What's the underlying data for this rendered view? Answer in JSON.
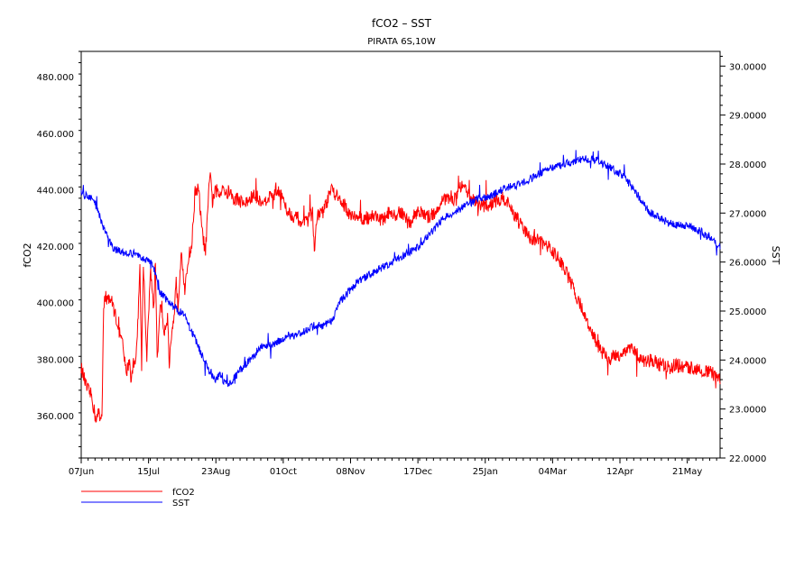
{
  "chart_data": {
    "type": "line",
    "title": "fCO2  –  SST",
    "subtitle": "PIRATA 6S,10W",
    "ylabel_left": "fCO2",
    "ylabel_right": "SST",
    "x_ticks": [
      "07Jun",
      "15Jul",
      "23Aug",
      "01Oct",
      "08Nov",
      "17Dec",
      "25Jan",
      "04Mar",
      "12Apr",
      "21May"
    ],
    "x_range_days": [
      0,
      370
    ],
    "x_tick_step_days": 39,
    "y_left_range": [
      345,
      489
    ],
    "y_left_ticks": [
      "360.000",
      "380.000",
      "400.000",
      "420.000",
      "440.000",
      "460.000",
      "480.000"
    ],
    "y_right_range": [
      22.0,
      30.3
    ],
    "y_right_ticks": [
      "22.0000",
      "23.0000",
      "24.0000",
      "25.0000",
      "26.0000",
      "27.0000",
      "28.0000",
      "29.0000",
      "30.0000"
    ],
    "legend_placement": "bottom-left",
    "grid": false,
    "series": [
      {
        "name": "fCO2",
        "color": "#ff0000",
        "axis": "left",
        "x": [
          0,
          3,
          6,
          8,
          9,
          10,
          11,
          12,
          13,
          14,
          15,
          16,
          18,
          20,
          22,
          24,
          26,
          28,
          29,
          30,
          32,
          34,
          35,
          36,
          38,
          40,
          42,
          43,
          44,
          46,
          48,
          50,
          51,
          52,
          54,
          55,
          56,
          58,
          60,
          62,
          64,
          66,
          68,
          70,
          72,
          74,
          75,
          76,
          78,
          80,
          82,
          84,
          86,
          88,
          90,
          95,
          100,
          105,
          110,
          115,
          120,
          125,
          130,
          134,
          135,
          136,
          140,
          145,
          150,
          155,
          160,
          165,
          170,
          175,
          178,
          180,
          185,
          190,
          195,
          200,
          205,
          210,
          215,
          220,
          225,
          230,
          235,
          240,
          245,
          250,
          255,
          260,
          265,
          270,
          275,
          280,
          285,
          290,
          295,
          300,
          305,
          310,
          315,
          320,
          325,
          330,
          335,
          340,
          345,
          350,
          355,
          360,
          365,
          370
        ],
        "y": [
          377,
          370,
          367,
          360,
          359,
          361,
          359,
          360,
          400,
          402,
          401,
          402,
          400,
          395,
          390,
          385,
          375,
          380,
          372,
          378,
          382,
          412,
          378,
          415,
          380,
          412,
          398,
          415,
          380,
          400,
          390,
          395,
          378,
          385,
          395,
          410,
          398,
          420,
          403,
          416,
          420,
          440,
          440,
          425,
          418,
          440,
          447,
          435,
          440,
          438,
          442,
          438,
          440,
          436,
          437,
          435,
          438,
          436,
          438,
          440,
          432,
          430,
          428,
          432,
          418,
          430,
          432,
          440,
          436,
          432,
          430,
          430,
          431,
          429,
          432,
          430,
          432,
          428,
          433,
          430,
          432,
          437,
          436,
          441,
          438,
          435,
          434,
          436,
          437,
          432,
          427,
          423,
          422,
          420,
          417,
          412,
          405,
          398,
          390,
          384,
          380,
          381,
          383,
          384,
          379,
          380,
          378,
          377,
          378,
          377,
          377,
          376,
          375,
          373
        ],
        "noise": 2.5
      },
      {
        "name": "SST",
        "color": "#0000ff",
        "axis": "right",
        "x": [
          0,
          3,
          6,
          8,
          10,
          12,
          14,
          16,
          18,
          20,
          25,
          30,
          35,
          40,
          43,
          45,
          48,
          50,
          55,
          60,
          65,
          70,
          75,
          78,
          80,
          82,
          85,
          88,
          90,
          95,
          100,
          105,
          110,
          115,
          120,
          125,
          130,
          135,
          140,
          145,
          150,
          155,
          160,
          165,
          170,
          175,
          180,
          185,
          190,
          195,
          200,
          205,
          210,
          215,
          220,
          225,
          230,
          235,
          240,
          245,
          250,
          255,
          260,
          265,
          270,
          275,
          280,
          285,
          290,
          295,
          300,
          305,
          310,
          315,
          320,
          325,
          330,
          335,
          340,
          345,
          350,
          355,
          360,
          365,
          370
        ],
        "y": [
          27.4,
          27.35,
          27.3,
          27.2,
          27.0,
          26.8,
          26.6,
          26.45,
          26.3,
          26.25,
          26.2,
          26.15,
          26.1,
          26.0,
          25.8,
          25.4,
          25.3,
          25.2,
          25.05,
          24.9,
          24.5,
          24.1,
          23.7,
          23.6,
          23.7,
          23.6,
          23.5,
          23.6,
          23.7,
          23.9,
          24.1,
          24.3,
          24.3,
          24.4,
          24.5,
          24.5,
          24.6,
          24.7,
          24.7,
          24.8,
          25.2,
          25.4,
          25.6,
          25.7,
          25.8,
          25.9,
          26.0,
          26.1,
          26.2,
          26.3,
          26.5,
          26.7,
          26.9,
          27.0,
          27.1,
          27.2,
          27.3,
          27.3,
          27.4,
          27.5,
          27.55,
          27.6,
          27.7,
          27.8,
          27.9,
          27.95,
          28.0,
          28.05,
          28.1,
          28.1,
          28.05,
          27.95,
          27.85,
          27.7,
          27.5,
          27.2,
          27.0,
          26.9,
          26.8,
          26.75,
          26.75,
          26.7,
          26.6,
          26.45,
          26.3
        ],
        "noise": 0.08
      }
    ]
  }
}
